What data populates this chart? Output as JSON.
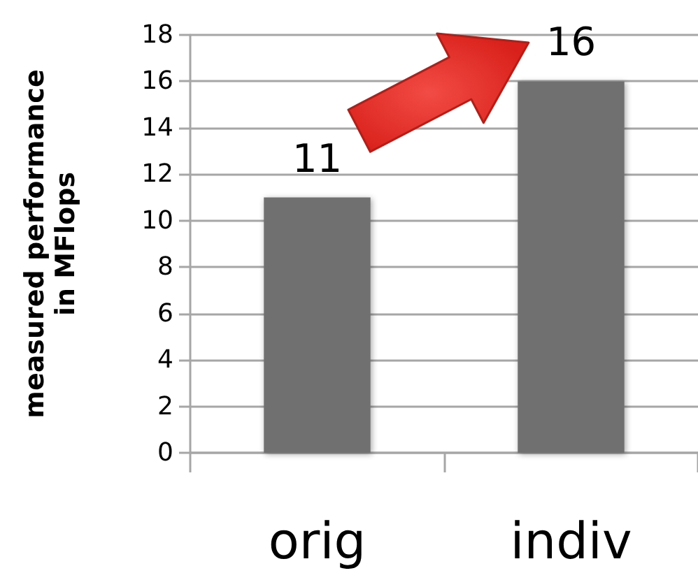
{
  "chart_data": {
    "type": "bar",
    "ylabel": "measured performance\nin MFlops",
    "categories": [
      "orig",
      "indiv"
    ],
    "values": [
      11,
      16
    ],
    "color": "#707070",
    "ylim": [
      0,
      18
    ],
    "yticks": [
      0,
      2,
      4,
      6,
      8,
      10,
      12,
      14,
      16,
      18
    ],
    "grid": "y",
    "data_labels": true
  }
}
